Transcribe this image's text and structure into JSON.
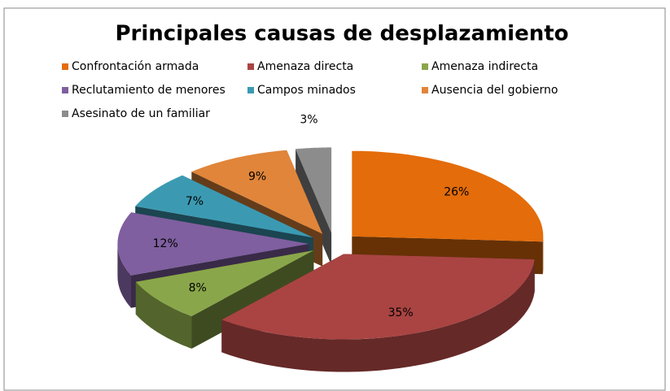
{
  "chart_data": {
    "type": "pie",
    "title": "Principales causas de desplazamiento",
    "categories": [
      "Confrontación armada",
      "Amenaza directa",
      "Amenaza indirecta",
      "Reclutamiento de menores",
      "Campos minados",
      "Ausencia del gobierno",
      "Asesinato de un familiar"
    ],
    "values": [
      26,
      35,
      8,
      12,
      7,
      9,
      3
    ],
    "value_labels": [
      "26%",
      "35%",
      "8%",
      "12%",
      "7%",
      "9%",
      "3%"
    ],
    "colors": [
      "#e46c0a",
      "#a94442",
      "#8aa64a",
      "#7f5f9f",
      "#3b9ab2",
      "#e0853a",
      "#8c8c8c"
    ]
  }
}
